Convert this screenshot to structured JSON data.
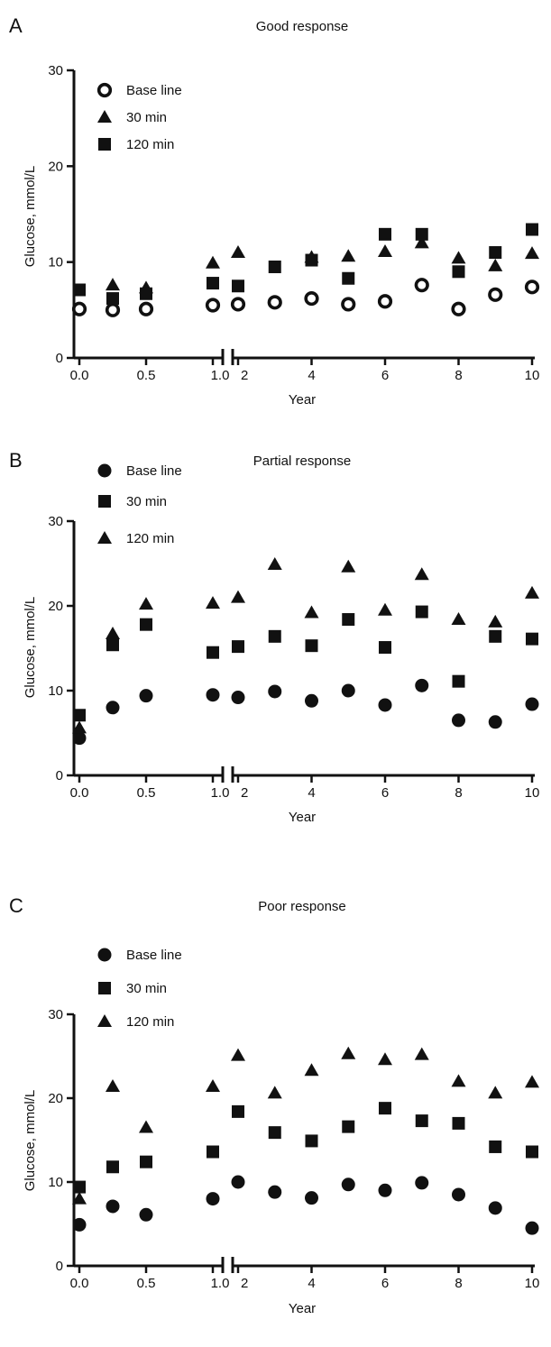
{
  "figure": {
    "background": "#ffffff",
    "ink": "#111111"
  },
  "chart_data": [
    {
      "panel": "A",
      "type": "scatter",
      "title": "Good response",
      "xlabel": "Year",
      "ylabel": "Glucose, mmol/L",
      "ylim": [
        0,
        30
      ],
      "yticks": [
        0,
        10,
        20,
        30
      ],
      "x_axis_break": {
        "after": 1.0,
        "before": 2
      },
      "xticks": [
        {
          "value": 0.0,
          "label": "0.0"
        },
        {
          "value": 0.5,
          "label": "0.5"
        },
        {
          "value": 1.0,
          "label": "1.0"
        },
        {
          "value": 2,
          "label": "2"
        },
        {
          "value": 4,
          "label": "4"
        },
        {
          "value": 6,
          "label": "6"
        },
        {
          "value": 8,
          "label": "8"
        },
        {
          "value": 10,
          "label": "10"
        }
      ],
      "legend_position": "top-left",
      "x": [
        0.0,
        0.25,
        0.5,
        1.0,
        2,
        3,
        4,
        5,
        6,
        7,
        8,
        9,
        10
      ],
      "series": [
        {
          "name": "Base line",
          "marker": "open-circle",
          "values": [
            5.1,
            5.0,
            5.1,
            5.5,
            5.6,
            5.8,
            6.2,
            5.6,
            5.9,
            7.6,
            5.1,
            6.6,
            7.4
          ]
        },
        {
          "name": "30 min",
          "marker": "triangle",
          "values": [
            null,
            7.6,
            7.3,
            9.9,
            11.0,
            null,
            10.5,
            10.6,
            11.1,
            12.0,
            10.4,
            9.6,
            10.9
          ]
        },
        {
          "name": "120 min",
          "marker": "square",
          "values": [
            7.1,
            6.2,
            6.7,
            7.8,
            7.5,
            9.5,
            10.2,
            8.3,
            12.9,
            12.9,
            9.0,
            11.0,
            13.4
          ]
        }
      ]
    },
    {
      "panel": "B",
      "type": "scatter",
      "title": "Partial response",
      "xlabel": "Year",
      "ylabel": "Glucose, mmol/L",
      "ylim": [
        0,
        30
      ],
      "yticks": [
        0,
        10,
        20,
        30
      ],
      "x_axis_break": {
        "after": 1.0,
        "before": 2
      },
      "xticks": [
        {
          "value": 0.0,
          "label": "0.0"
        },
        {
          "value": 0.5,
          "label": "0.5"
        },
        {
          "value": 1.0,
          "label": "1.0"
        },
        {
          "value": 2,
          "label": "2"
        },
        {
          "value": 4,
          "label": "4"
        },
        {
          "value": 6,
          "label": "6"
        },
        {
          "value": 8,
          "label": "8"
        },
        {
          "value": 10,
          "label": "10"
        }
      ],
      "legend_position": "top-left",
      "x": [
        0.0,
        0.25,
        0.5,
        1.0,
        2,
        3,
        4,
        5,
        6,
        7,
        8,
        9,
        10
      ],
      "series": [
        {
          "name": "Base line",
          "marker": "circle",
          "values": [
            4.4,
            8.0,
            9.4,
            9.5,
            9.2,
            9.9,
            8.8,
            10.0,
            8.3,
            10.6,
            6.5,
            6.3,
            8.4
          ]
        },
        {
          "name": "30 min",
          "marker": "square",
          "values": [
            7.1,
            15.4,
            17.8,
            14.5,
            15.2,
            16.4,
            15.3,
            18.4,
            15.1,
            19.3,
            11.1,
            16.4,
            16.1
          ]
        },
        {
          "name": "120 min",
          "marker": "triangle",
          "values": [
            5.6,
            16.7,
            20.2,
            20.3,
            21.0,
            24.9,
            19.2,
            24.6,
            19.5,
            23.7,
            18.4,
            18.1,
            21.5
          ]
        }
      ]
    },
    {
      "panel": "C",
      "type": "scatter",
      "title": "Poor response",
      "xlabel": "Year",
      "ylabel": "Glucose, mmol/L",
      "ylim": [
        0,
        30
      ],
      "yticks": [
        0,
        10,
        20,
        30
      ],
      "x_axis_break": {
        "after": 1.0,
        "before": 2
      },
      "xticks": [
        {
          "value": 0.0,
          "label": "0.0"
        },
        {
          "value": 0.5,
          "label": "0.5"
        },
        {
          "value": 1.0,
          "label": "1.0"
        },
        {
          "value": 2,
          "label": "2"
        },
        {
          "value": 4,
          "label": "4"
        },
        {
          "value": 6,
          "label": "6"
        },
        {
          "value": 8,
          "label": "8"
        },
        {
          "value": 10,
          "label": "10"
        }
      ],
      "legend_position": "top-left",
      "x": [
        0.0,
        0.25,
        0.5,
        1.0,
        2,
        3,
        4,
        5,
        6,
        7,
        8,
        9,
        10
      ],
      "series": [
        {
          "name": "Base line",
          "marker": "circle",
          "values": [
            4.9,
            7.1,
            6.1,
            8.0,
            10.0,
            8.8,
            8.1,
            9.7,
            9.0,
            9.9,
            8.5,
            6.9,
            4.5
          ]
        },
        {
          "name": "30 min",
          "marker": "square",
          "values": [
            9.4,
            11.8,
            12.4,
            13.6,
            18.4,
            15.9,
            14.9,
            16.6,
            18.8,
            17.3,
            17.0,
            14.2,
            13.6
          ]
        },
        {
          "name": "120 min",
          "marker": "triangle",
          "values": [
            8.0,
            21.4,
            16.5,
            21.4,
            25.1,
            20.6,
            23.3,
            25.3,
            24.6,
            25.2,
            22.0,
            20.6,
            21.9
          ]
        }
      ]
    }
  ]
}
